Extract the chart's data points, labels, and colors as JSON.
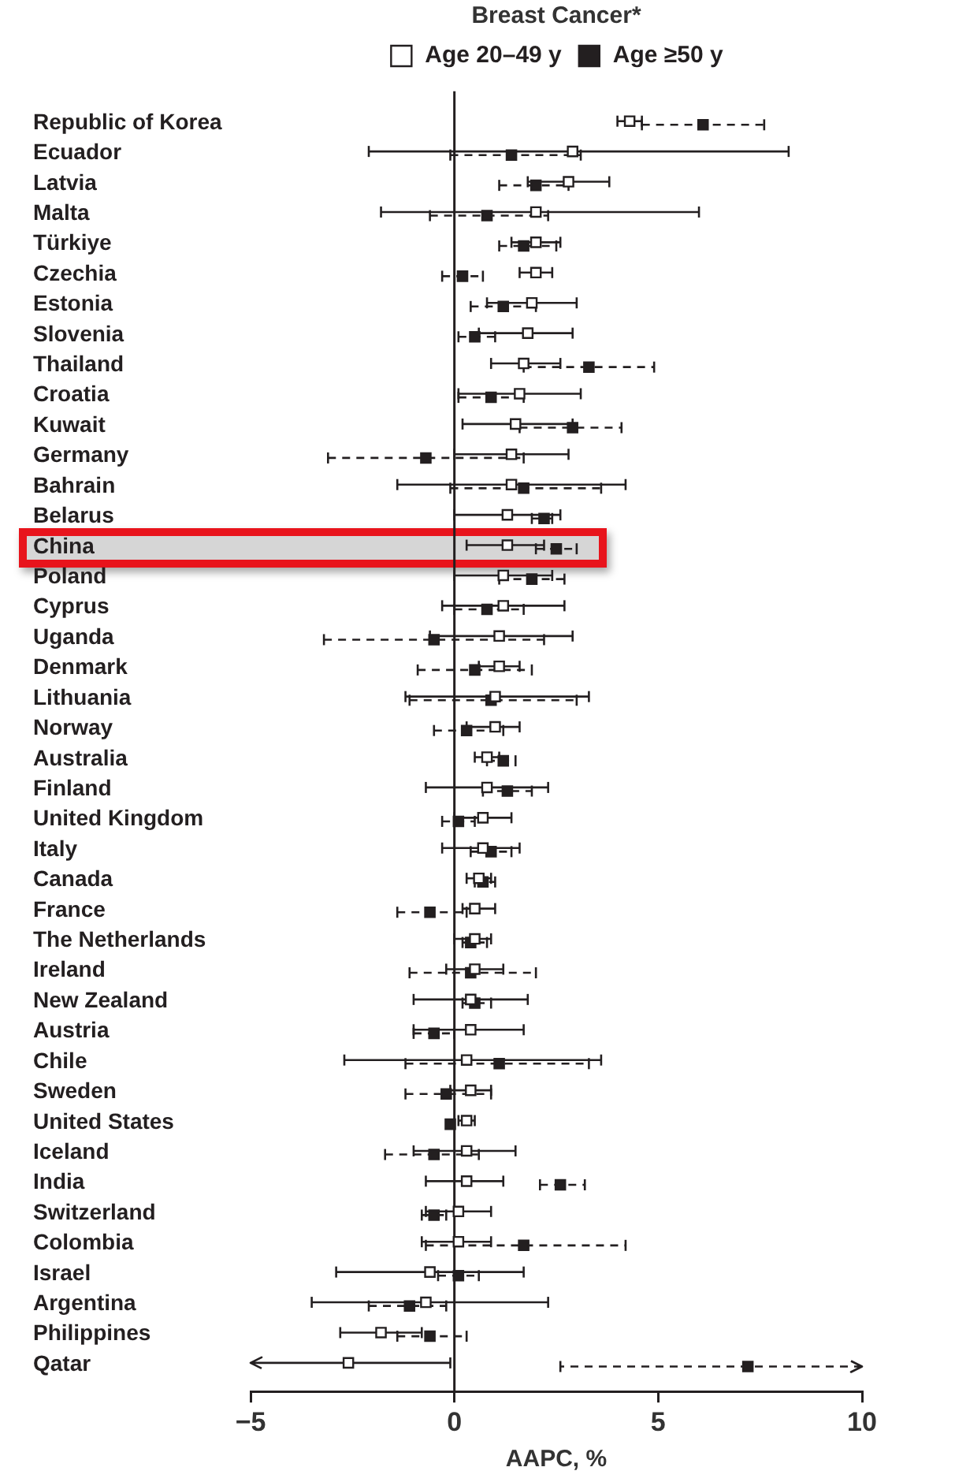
{
  "chart_data": {
    "type": "scatter",
    "orientation": "horizontal",
    "title": "Breast Cancer*",
    "xlabel": "AAPC, %",
    "legend": "top",
    "marker": "square",
    "categories": [
      "Republic of Korea",
      "Ecuador",
      "Latvia",
      "Malta",
      "Türkiye",
      "Czechia",
      "Estonia",
      "Slovenia",
      "Thailand",
      "Croatia",
      "Kuwait",
      "Germany",
      "Bahrain",
      "Belarus",
      "China",
      "Poland",
      "Cyprus",
      "Uganda",
      "Denmark",
      "Lithuania",
      "Norway",
      "Australia",
      "Finland",
      "United Kingdom",
      "Italy",
      "Canada",
      "France",
      "The Netherlands",
      "Ireland",
      "New Zealand",
      "Austria",
      "Chile",
      "Sweden",
      "United States",
      "Iceland",
      "India",
      "Switzerland",
      "Colombia",
      "Israel",
      "Argentina",
      "Philippines",
      "Qatar"
    ],
    "series": [
      {
        "name": "Age 20–49 y",
        "color": "#ffffff",
        "line_style": "solid",
        "values": [
          4.3,
          2.9,
          2.8,
          2.0,
          2.0,
          2.0,
          1.9,
          1.8,
          1.7,
          1.6,
          1.5,
          1.4,
          1.4,
          1.3,
          1.3,
          1.2,
          1.2,
          1.1,
          1.1,
          1.0,
          1.0,
          0.8,
          0.8,
          0.7,
          0.7,
          0.6,
          0.5,
          0.5,
          0.5,
          0.4,
          0.4,
          0.3,
          0.4,
          0.3,
          0.3,
          0.3,
          0.1,
          0.1,
          -0.6,
          -0.7,
          -1.8,
          -2.6
        ],
        "errors": [
          [
            4.0,
            4.6
          ],
          [
            -2.1,
            8.2
          ],
          [
            1.8,
            3.8
          ],
          [
            -1.8,
            6.0
          ],
          [
            1.4,
            2.6
          ],
          [
            1.6,
            2.4
          ],
          [
            0.8,
            3.0
          ],
          [
            0.6,
            2.9
          ],
          [
            0.9,
            2.6
          ],
          [
            0.1,
            3.1
          ],
          [
            0.2,
            2.9
          ],
          [
            0.0,
            2.8
          ],
          [
            -1.4,
            4.2
          ],
          [
            0.0,
            2.6
          ],
          [
            0.3,
            2.2
          ],
          [
            0.0,
            2.4
          ],
          [
            -0.3,
            2.7
          ],
          [
            -0.6,
            2.9
          ],
          [
            0.6,
            1.6
          ],
          [
            -1.2,
            3.3
          ],
          [
            0.3,
            1.6
          ],
          [
            0.5,
            1.1
          ],
          [
            -0.7,
            2.3
          ],
          [
            0.0,
            1.4
          ],
          [
            -0.3,
            1.6
          ],
          [
            0.3,
            0.9
          ],
          [
            0.2,
            1.0
          ],
          [
            0.0,
            0.9
          ],
          [
            -0.2,
            1.2
          ],
          [
            -1.0,
            1.8
          ],
          [
            -1.0,
            1.7
          ],
          [
            -2.7,
            3.6
          ],
          [
            -0.1,
            0.9
          ],
          [
            0.1,
            0.5
          ],
          [
            -1.0,
            1.5
          ],
          [
            -0.7,
            1.2
          ],
          [
            -0.7,
            0.9
          ],
          [
            -0.8,
            0.9
          ],
          [
            -2.9,
            1.7
          ],
          [
            -3.5,
            2.3
          ],
          [
            -2.8,
            -0.8
          ],
          [
            -5,
            -0.1
          ]
        ]
      },
      {
        "name": "Age ≥50 y",
        "color": "#231f20",
        "line_style": "dashed",
        "values": [
          6.1,
          1.4,
          2.0,
          0.8,
          1.7,
          0.2,
          1.2,
          0.5,
          3.3,
          0.9,
          2.9,
          -0.7,
          1.7,
          2.2,
          2.5,
          1.9,
          0.8,
          -0.5,
          0.5,
          0.9,
          0.3,
          1.2,
          1.3,
          0.1,
          0.9,
          0.7,
          -0.6,
          0.4,
          0.4,
          0.5,
          -0.5,
          1.1,
          -0.2,
          -0.1,
          -0.5,
          2.6,
          -0.5,
          1.7,
          0.1,
          -1.1,
          -0.6,
          7.2
        ],
        "errors": [
          [
            4.6,
            7.6
          ],
          [
            -0.1,
            3.1
          ],
          [
            1.1,
            2.8
          ],
          [
            -0.6,
            2.3
          ],
          [
            1.1,
            2.5
          ],
          [
            -0.3,
            0.7
          ],
          [
            0.4,
            2.0
          ],
          [
            0.1,
            1.0
          ],
          [
            1.7,
            4.9
          ],
          [
            0.1,
            1.7
          ],
          [
            1.6,
            4.1
          ],
          [
            -3.1,
            1.7
          ],
          [
            -0.1,
            3.6
          ],
          [
            1.9,
            2.4
          ],
          [
            2.0,
            3.0
          ],
          [
            1.1,
            2.7
          ],
          [
            0.0,
            1.7
          ],
          [
            -3.2,
            2.2
          ],
          [
            -0.9,
            1.9
          ],
          [
            -1.1,
            3.0
          ],
          [
            -0.5,
            1.2
          ],
          [
            0.8,
            1.5
          ],
          [
            0.7,
            1.9
          ],
          [
            -0.3,
            0.5
          ],
          [
            0.4,
            1.4
          ],
          [
            0.5,
            1.0
          ],
          [
            -1.4,
            0.3
          ],
          [
            0.2,
            0.8
          ],
          [
            -1.1,
            2.0
          ],
          [
            0.2,
            0.9
          ],
          [
            -1.0,
            0.0
          ],
          [
            -1.2,
            3.3
          ],
          [
            -1.2,
            0.9
          ],
          null,
          [
            -1.7,
            0.6
          ],
          [
            2.1,
            3.2
          ],
          [
            -0.8,
            -0.2
          ],
          [
            -0.7,
            4.2
          ],
          [
            -0.4,
            0.6
          ],
          [
            -2.1,
            -0.2
          ],
          [
            -1.4,
            0.3
          ],
          [
            2.6,
            10
          ]
        ]
      }
    ],
    "xlim": [
      -5,
      10
    ],
    "xticks": [
      {
        "value": -5,
        "label": "−5"
      },
      0,
      5,
      10
    ],
    "ref_lines": [
      {
        "axis": "x",
        "value": 0
      }
    ]
  }
}
